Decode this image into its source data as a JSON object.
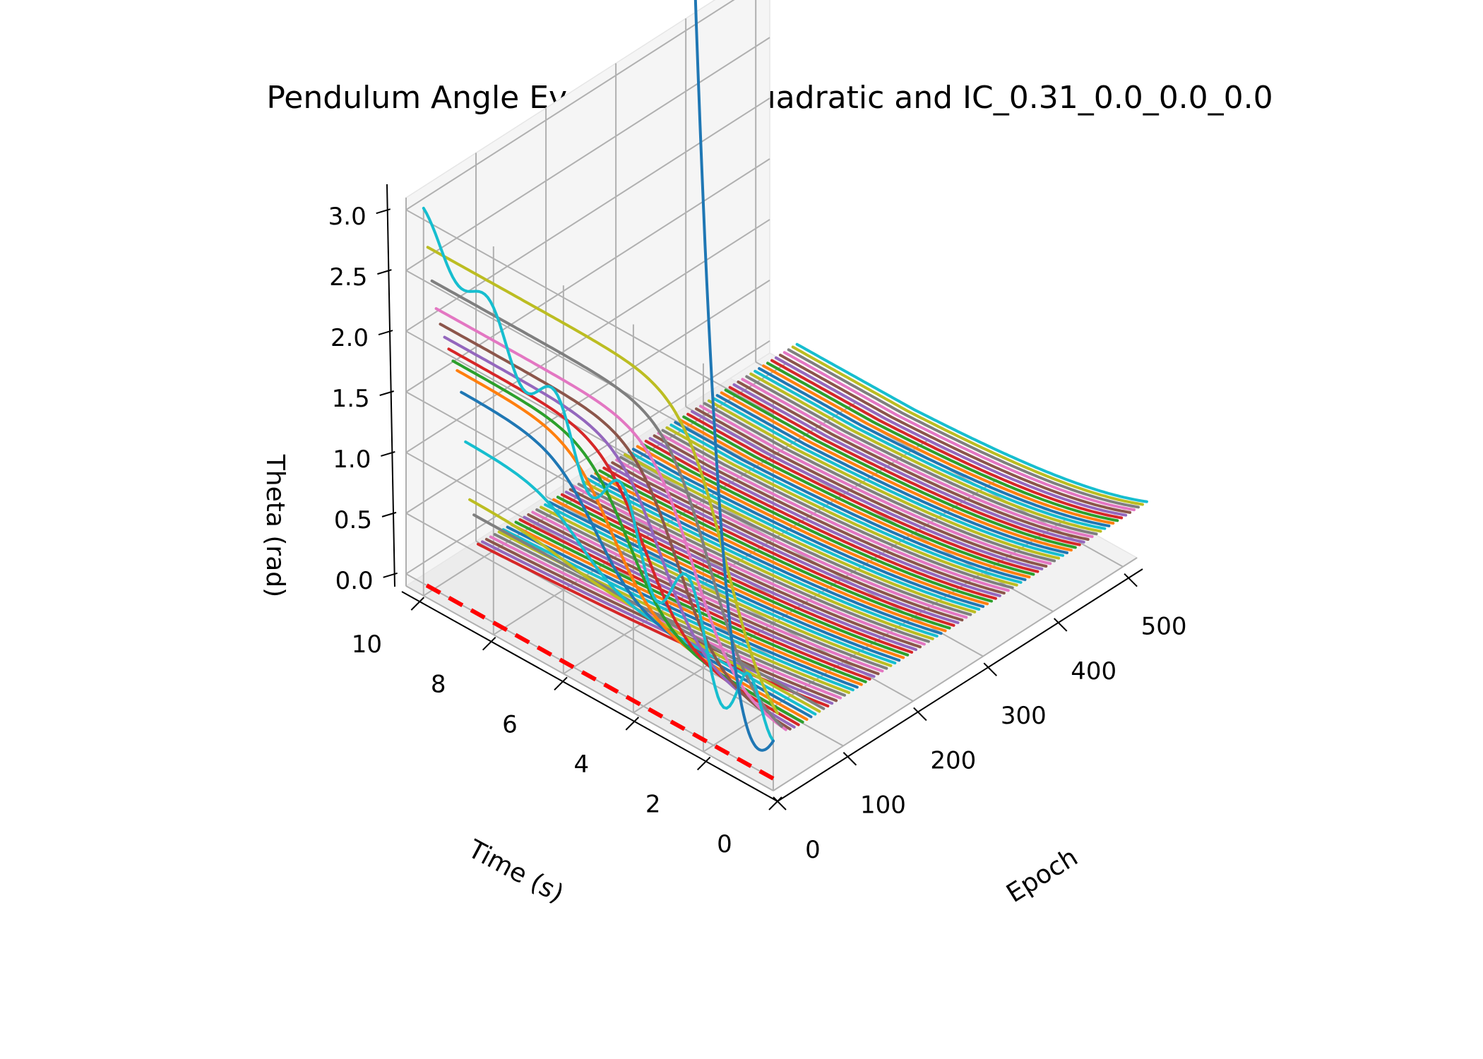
{
  "chart_data": {
    "type": "line",
    "projection": "3d",
    "title": "Pendulum Angle Evolution for quadratic and IC_0.31_0.0_0.0_0.0",
    "xlabel": "Epoch",
    "ylabel": "Time (s)",
    "zlabel": "Theta (rad)",
    "xlim": [
      0,
      520
    ],
    "ylim": [
      0,
      10.5
    ],
    "zlim": [
      -0.1,
      3.1
    ],
    "xticks": [
      "0",
      "100",
      "200",
      "300",
      "400",
      "500"
    ],
    "yticks": [
      "0",
      "2",
      "4",
      "6",
      "8",
      "10"
    ],
    "zticks": [
      "0.0",
      "0.5",
      "1.0",
      "1.5",
      "2.0",
      "2.5",
      "3.0"
    ],
    "grid": true,
    "legend": "none",
    "initial_theta_rad": 0.31,
    "series_count": 90,
    "epoch_step": 6,
    "time_range": [
      0,
      10
    ],
    "palette": [
      "#1f77b4",
      "#ff7f0e",
      "#2ca02c",
      "#d62728",
      "#9467bd",
      "#8c564b",
      "#e377c2",
      "#7f7f7f",
      "#bcbd22",
      "#17becf"
    ],
    "reference_line": {
      "color": "#ff0000",
      "style": "dashed",
      "z": 0,
      "epoch": 0,
      "time_range": [
        0,
        10
      ]
    },
    "late_epoch_curve": {
      "theta_at_t0": 0.31,
      "theta_at_t10": 0.0
    },
    "early_epoch_curves": [
      {
        "epoch": 0,
        "theta_at_t10": 3.0,
        "oscillating": true,
        "color": "#17becf"
      },
      {
        "epoch": 6,
        "theta_at_t10": 2.75,
        "color": "#bcbd22"
      },
      {
        "epoch": 12,
        "theta_at_t10": 2.45,
        "color": "#7f7f7f"
      },
      {
        "epoch": 18,
        "theta_at_t10": 2.2,
        "color": "#e377c2"
      },
      {
        "epoch": 24,
        "theta_at_t10": 2.05,
        "color": "#8c564b"
      },
      {
        "epoch": 30,
        "theta_at_t10": 1.92,
        "color": "#9467bd"
      },
      {
        "epoch": 36,
        "theta_at_t10": 1.8,
        "color": "#d62728"
      },
      {
        "epoch": 42,
        "theta_at_t10": 1.68,
        "color": "#2ca02c"
      },
      {
        "epoch": 48,
        "theta_at_t10": 1.58,
        "color": "#ff7f0e"
      },
      {
        "epoch": 54,
        "theta_at_t10": 1.38,
        "color": "#1f77b4"
      },
      {
        "epoch": 60,
        "theta_at_t10": 0.95,
        "color": "#17becf"
      },
      {
        "epoch": 66,
        "theta_at_t10": 0.45,
        "color": "#bcbd22"
      },
      {
        "epoch": 72,
        "theta_at_t10": 0.3,
        "color": "#7f7f7f"
      }
    ]
  }
}
